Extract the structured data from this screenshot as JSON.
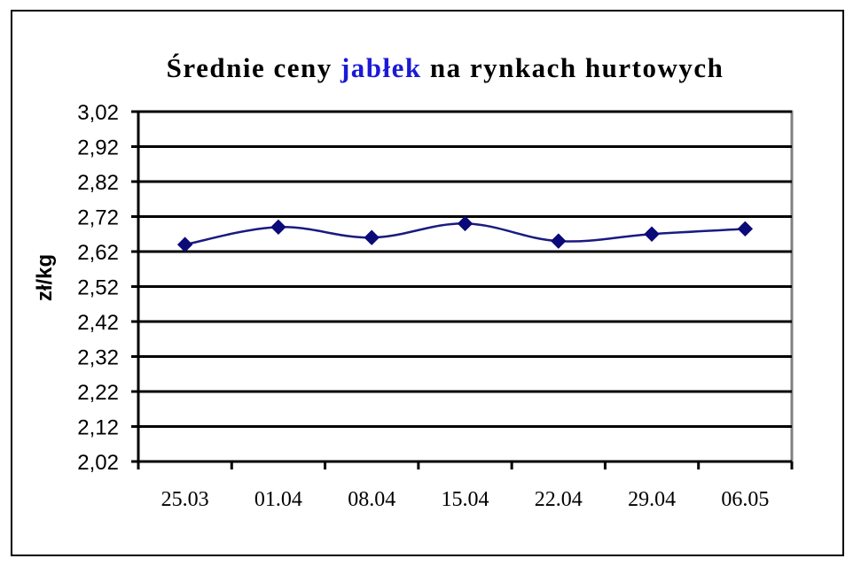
{
  "chart_data": {
    "type": "line",
    "title_parts": [
      "Średnie ceny ",
      "jabłek",
      " na rynkach hurtowych"
    ],
    "ylabel": "zł/kg",
    "xlabel": "",
    "categories": [
      "25.03",
      "01.04",
      "08.04",
      "15.04",
      "22.04",
      "29.04",
      "06.05"
    ],
    "series": [
      {
        "values": [
          2.64,
          2.69,
          2.66,
          2.7,
          2.65,
          2.67,
          2.685
        ]
      }
    ],
    "yticks": [
      "3,02",
      "2,92",
      "2,82",
      "2,72",
      "2,62",
      "2,52",
      "2,42",
      "2,32",
      "2,22",
      "2,12",
      "2,02"
    ],
    "ylim": [
      2.02,
      3.02
    ],
    "grid": true,
    "legend": "none",
    "colors": {
      "line": "#1a1a80",
      "marker": "#0a0a78",
      "title_highlight": "#1a1ad6",
      "gridline": "#000000",
      "plot_border": "#808080"
    }
  }
}
